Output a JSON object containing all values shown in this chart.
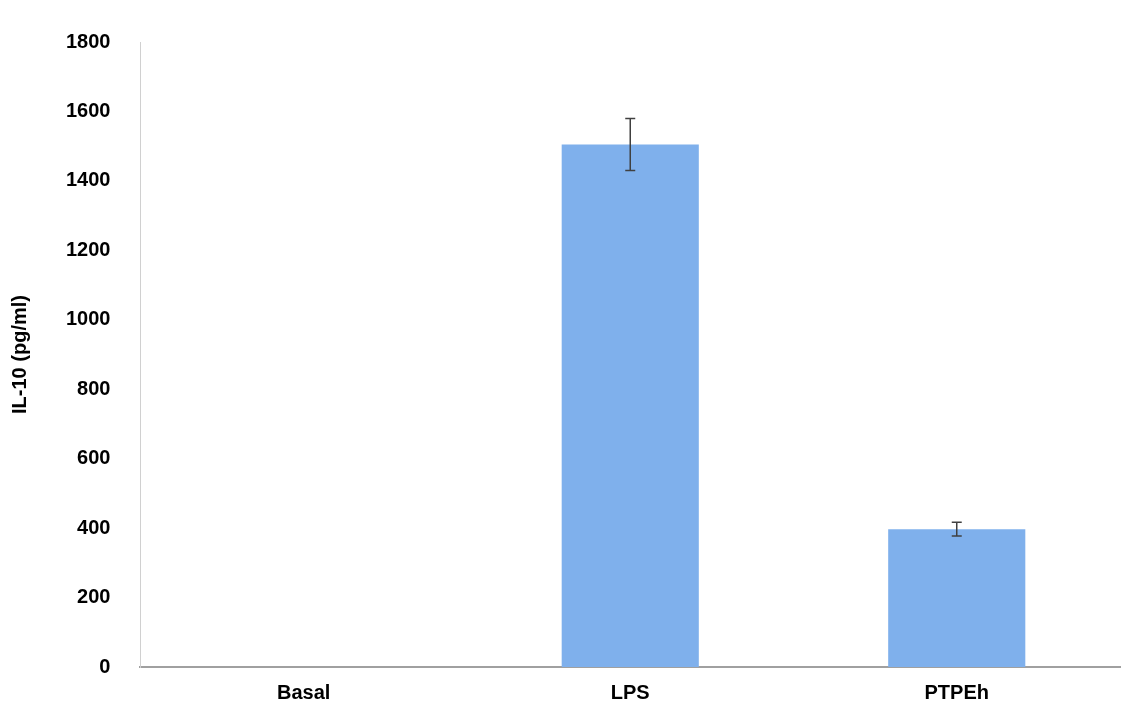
{
  "chart_data": {
    "type": "bar",
    "ylabel": "IL-10 (pg/ml)",
    "categories": [
      "Basal",
      "LPS",
      "PTPEh"
    ],
    "values": [
      0,
      1505,
      397
    ],
    "errors": [
      null,
      75,
      20
    ],
    "color": "#7fb0ec",
    "ylim": [
      0,
      1800
    ],
    "yticks": [
      0,
      200,
      400,
      600,
      800,
      1000,
      1200,
      1400,
      1600,
      1800
    ],
    "grid": false,
    "legend": false
  }
}
